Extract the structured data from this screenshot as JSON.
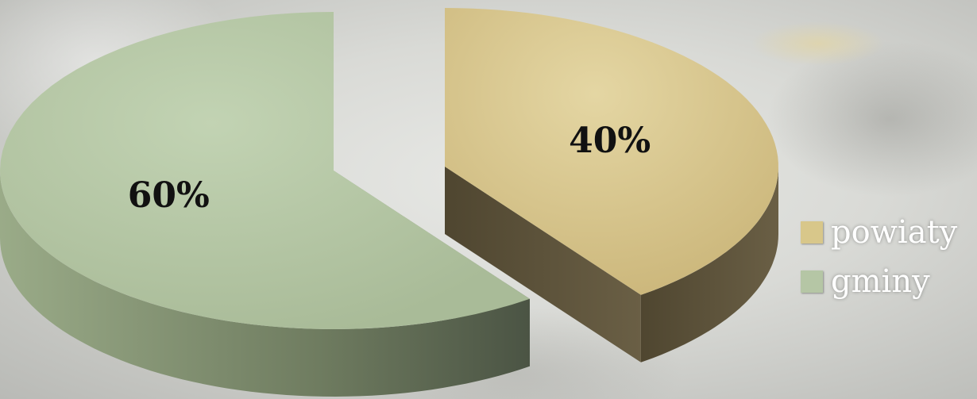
{
  "chart_data": {
    "type": "pie",
    "title": "",
    "three_d": true,
    "exploded": true,
    "categories": [
      "powiaty",
      "gminy"
    ],
    "values": [
      40,
      60
    ],
    "labels": [
      "40%",
      "60%"
    ],
    "colors": [
      "#d8c78a",
      "#b5c6a5"
    ],
    "legend_position": "right"
  }
}
